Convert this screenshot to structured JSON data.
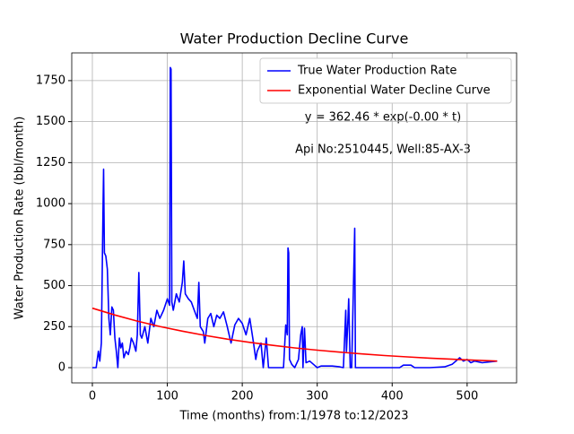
{
  "chart_data": {
    "type": "line",
    "title": "Water Production Decline Curve",
    "xlabel": "Time (months) from:1/1978 to:12/2023",
    "ylabel": "Water Production Rate (bbl/month)",
    "annotations": [
      "y = 362.46 * exp(-0.00 * t)",
      "Api No:2510445, Well:85-AX-3"
    ],
    "xlim": [
      -27.5,
      566
    ],
    "ylim": [
      -93,
      1919
    ],
    "xticks": [
      0,
      100,
      200,
      300,
      400,
      500
    ],
    "yticks": [
      0,
      250,
      500,
      750,
      1000,
      1250,
      1500,
      1750
    ],
    "grid": true,
    "legend": "upper right",
    "series": [
      {
        "name": "True Water Production Rate",
        "color": "#0000ff",
        "x": [
          0,
          5,
          8,
          10,
          12,
          14,
          15,
          16,
          18,
          20,
          22,
          24,
          26,
          28,
          30,
          32,
          34,
          36,
          38,
          40,
          42,
          45,
          48,
          50,
          52,
          55,
          58,
          60,
          62,
          64,
          66,
          70,
          74,
          78,
          82,
          86,
          90,
          95,
          100,
          103,
          104,
          105,
          106,
          108,
          112,
          116,
          120,
          122,
          124,
          128,
          132,
          136,
          140,
          142,
          144,
          148,
          150,
          154,
          158,
          162,
          166,
          170,
          175,
          180,
          185,
          190,
          195,
          200,
          205,
          210,
          215,
          218,
          220,
          225,
          228,
          232,
          235,
          240,
          250,
          255,
          258,
          260,
          261,
          262,
          263,
          266,
          270,
          275,
          278,
          280,
          281,
          283,
          285,
          290,
          295,
          300,
          305,
          310,
          320,
          330,
          335,
          338,
          339,
          341,
          342,
          344,
          346,
          350,
          351,
          355,
          370,
          400,
          410,
          415,
          425,
          430,
          450,
          470,
          480,
          490,
          495,
          500,
          505,
          510,
          520,
          530,
          540
        ],
        "values": [
          0,
          0,
          100,
          40,
          150,
          900,
          1210,
          700,
          680,
          600,
          300,
          200,
          370,
          350,
          180,
          100,
          0,
          180,
          120,
          150,
          60,
          100,
          80,
          120,
          180,
          150,
          100,
          200,
          580,
          200,
          180,
          250,
          150,
          300,
          250,
          350,
          300,
          350,
          420,
          380,
          1830,
          1820,
          400,
          350,
          450,
          400,
          520,
          650,
          450,
          420,
          400,
          350,
          300,
          520,
          250,
          220,
          150,
          300,
          330,
          250,
          320,
          300,
          340,
          250,
          150,
          260,
          300,
          270,
          200,
          300,
          150,
          50,
          100,
          150,
          0,
          180,
          0,
          0,
          0,
          0,
          260,
          200,
          730,
          700,
          50,
          20,
          0,
          50,
          200,
          250,
          0,
          240,
          30,
          40,
          20,
          0,
          10,
          10,
          10,
          5,
          0,
          350,
          100,
          300,
          420,
          0,
          0,
          850,
          0,
          0,
          0,
          0,
          0,
          15,
          15,
          0,
          0,
          5,
          20,
          60,
          40,
          50,
          30,
          40,
          30,
          35,
          40
        ]
      },
      {
        "name": "Exponential Water Decline Curve",
        "color": "#ff0000",
        "x": [
          0,
          30,
          60,
          90,
          120,
          150,
          180,
          210,
          240,
          270,
          300,
          330,
          360,
          390,
          420,
          450,
          480,
          510,
          540
        ],
        "values": [
          362.5,
          320.7,
          283.8,
          251.1,
          222.2,
          196.6,
          173.9,
          153.9,
          136.2,
          120.5,
          106.6,
          94.3,
          83.5,
          73.9,
          65.3,
          57.8,
          51.2,
          45.3,
          40.0
        ]
      }
    ]
  }
}
